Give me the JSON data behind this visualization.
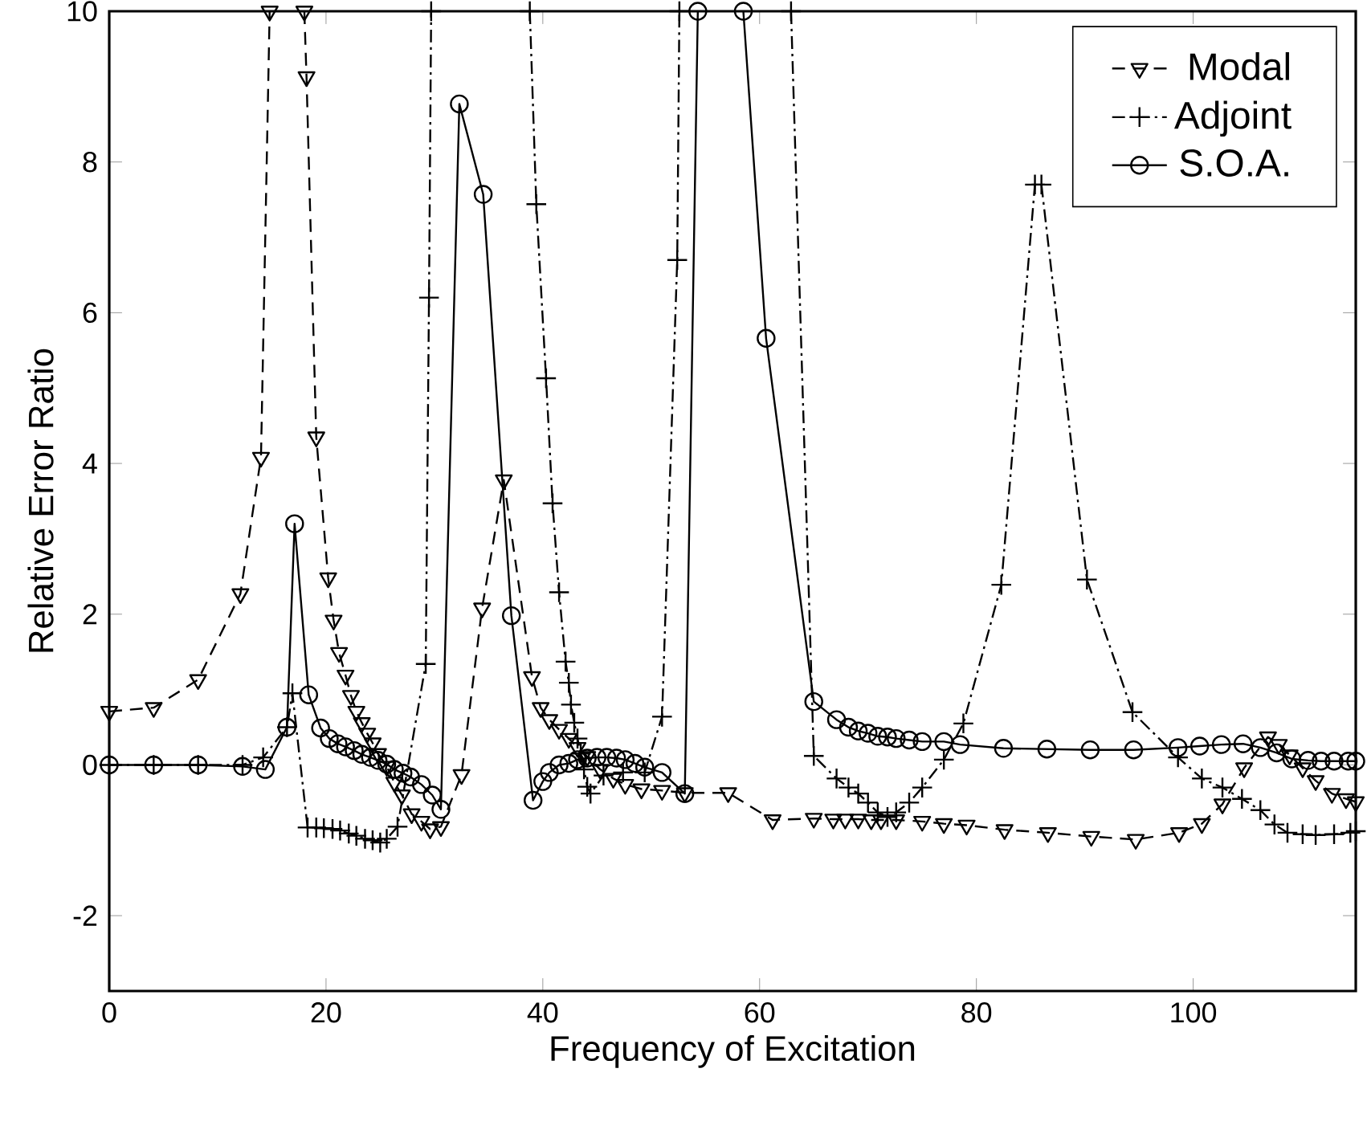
{
  "chart_data": {
    "type": "line",
    "xlabel": "Frequency of Excitation",
    "ylabel": "Relative Error Ratio",
    "xlim": [
      0,
      115
    ],
    "ylim": [
      -3,
      10
    ],
    "xticks": [
      0,
      20,
      40,
      60,
      80,
      100
    ],
    "yticks": [
      -2,
      0,
      2,
      4,
      6,
      8,
      10
    ],
    "legend": "top right",
    "series": [
      {
        "name": "Modal",
        "color": "#000000",
        "marker": "triangle",
        "line_style": "dashed",
        "x": [
          0,
          4.1,
          8.2,
          12.1,
          14.0,
          14.8,
          16.4,
          18.0,
          18.2,
          19.1,
          20.2,
          20.7,
          21.2,
          21.8,
          22.3,
          22.8,
          23.3,
          23.8,
          24.3,
          24.8,
          25.6,
          26.3,
          27.0,
          27.9,
          28.8,
          29.6,
          30.6,
          32.5,
          34.4,
          36.4,
          39.0,
          39.8,
          40.6,
          41.5,
          42.4,
          43.2,
          44.1,
          45.3,
          46.5,
          47.6,
          49.1,
          51,
          53.1,
          57.1,
          61.2,
          65,
          66.8,
          67.9,
          69.1,
          70.3,
          71.2,
          72.6,
          75,
          77,
          79.1,
          82.6,
          86.6,
          90.6,
          94.7,
          98.7,
          100.8,
          102.7,
          104.7,
          106.9,
          107.9,
          108.9,
          110.1,
          111.3,
          112.8,
          114.1,
          115
        ],
        "values": [
          0.71,
          0.76,
          1.13,
          2.27,
          4.08,
          10,
          null,
          10,
          9.13,
          4.35,
          2.48,
          1.92,
          1.49,
          1.19,
          0.92,
          0.71,
          0.56,
          0.42,
          0.29,
          0.15,
          -0.02,
          -0.23,
          -0.4,
          -0.65,
          -0.75,
          -0.85,
          -0.82,
          -0.13,
          2.08,
          3.78,
          1.17,
          0.76,
          0.6,
          0.47,
          0.35,
          0.23,
          0.11,
          -0.06,
          -0.18,
          -0.26,
          -0.32,
          -0.34,
          -0.37,
          -0.37,
          -0.73,
          -0.71,
          -0.72,
          -0.72,
          -0.72,
          -0.73,
          -0.73,
          -0.73,
          -0.75,
          -0.78,
          -0.8,
          -0.86,
          -0.9,
          -0.95,
          -0.99,
          -0.9,
          -0.78,
          -0.52,
          -0.04,
          0.37,
          0.27,
          0.13,
          -0.04,
          -0.21,
          -0.38,
          -0.45,
          -0.49
        ]
      },
      {
        "name": "Adjoint",
        "color": "#000000",
        "marker": "cross",
        "line_style": "dashdot",
        "x": [
          0,
          4.1,
          8.2,
          12.3,
          14.2,
          16.4,
          16.9,
          18.3,
          19.1,
          19.8,
          20.6,
          21.3,
          22.1,
          22.8,
          23.6,
          24.3,
          25.0,
          25.6,
          26.6,
          29.2,
          29.5,
          29.7,
          34,
          38.8,
          39.4,
          40.3,
          40.9,
          41.5,
          42.1,
          42.4,
          42.6,
          42.9,
          43.2,
          43.5,
          43.8,
          44.1,
          44.4,
          45.6,
          47.4,
          49.4,
          51,
          52.4,
          52.6,
          57,
          62.9,
          65,
          67.1,
          68.2,
          69.1,
          70,
          70.9,
          71.8,
          72.6,
          73.8,
          75,
          77,
          78.8,
          82.3,
          85.4,
          85.7,
          86.0,
          90.2,
          94.4,
          98.6,
          100.8,
          102.7,
          104.5,
          106.2,
          107.5,
          108.7,
          110.1,
          111.3,
          113,
          114.5,
          115
        ],
        "values": [
          0,
          0,
          0,
          0,
          0.1,
          0.5,
          0.95,
          -0.83,
          -0.83,
          -0.84,
          -0.85,
          -0.87,
          -0.91,
          -0.94,
          -0.98,
          -1.0,
          -1.03,
          -0.98,
          -0.82,
          1.34,
          6.2,
          10,
          null,
          10,
          7.44,
          5.13,
          3.47,
          2.29,
          1.37,
          1.09,
          0.8,
          0.56,
          0.35,
          0.15,
          -0.06,
          -0.29,
          -0.38,
          -0.14,
          -0.1,
          -0.1,
          0.64,
          6.7,
          10,
          null,
          10,
          0.12,
          -0.18,
          -0.3,
          -0.38,
          -0.5,
          -0.63,
          -0.69,
          -0.63,
          -0.5,
          -0.3,
          0.07,
          0.55,
          2.39,
          7.7,
          null,
          7.7,
          2.46,
          0.7,
          0.1,
          -0.18,
          -0.3,
          -0.45,
          -0.6,
          -0.79,
          -0.9,
          -0.92,
          -0.93,
          -0.92,
          -0.9,
          -0.88
        ]
      },
      {
        "name": "S.O.A.",
        "color": "#000000",
        "marker": "circle",
        "line_style": "solid",
        "x": [
          0,
          4.1,
          8.2,
          12.3,
          14.4,
          16.4,
          17.1,
          18.4,
          19.5,
          20.3,
          21.1,
          21.8,
          22.6,
          23.3,
          24.1,
          24.8,
          25.6,
          26.3,
          27.1,
          27.8,
          28.8,
          29.8,
          30.6,
          32.3,
          34.5,
          37.1,
          39.1,
          40,
          40.6,
          41.5,
          42.4,
          43.2,
          44.1,
          45,
          45.9,
          46.8,
          47.6,
          48.5,
          49.4,
          51,
          53.1,
          54.3,
          56.4,
          58.5,
          60.6,
          65,
          67.1,
          68.2,
          69.1,
          70,
          70.9,
          71.8,
          72.6,
          73.8,
          75,
          77,
          78.5,
          82.5,
          86.5,
          90.5,
          94.5,
          98.6,
          100.6,
          102.6,
          104.6,
          106.2,
          107.7,
          109.1,
          110.6,
          111.8,
          113,
          114.3,
          115
        ],
        "values": [
          0,
          0,
          0,
          -0.02,
          -0.06,
          0.5,
          3.2,
          0.93,
          0.49,
          0.35,
          0.28,
          0.24,
          0.19,
          0.14,
          0.1,
          0.06,
          0.01,
          -0.06,
          -0.11,
          -0.16,
          -0.26,
          -0.4,
          -0.59,
          8.77,
          7.57,
          1.98,
          -0.47,
          -0.22,
          -0.1,
          0,
          0.02,
          0.07,
          0.09,
          0.1,
          0.1,
          0.09,
          0.07,
          0.02,
          -0.03,
          -0.1,
          -0.38,
          10,
          null,
          10,
          5.66,
          0.84,
          0.6,
          0.5,
          0.45,
          0.42,
          0.38,
          0.37,
          0.35,
          0.33,
          0.31,
          0.31,
          0.27,
          0.22,
          0.21,
          0.2,
          0.2,
          0.23,
          0.25,
          0.27,
          0.28,
          0.23,
          0.16,
          0.08,
          0.06,
          0.05,
          0.05,
          0.05,
          0.05
        ]
      }
    ]
  }
}
